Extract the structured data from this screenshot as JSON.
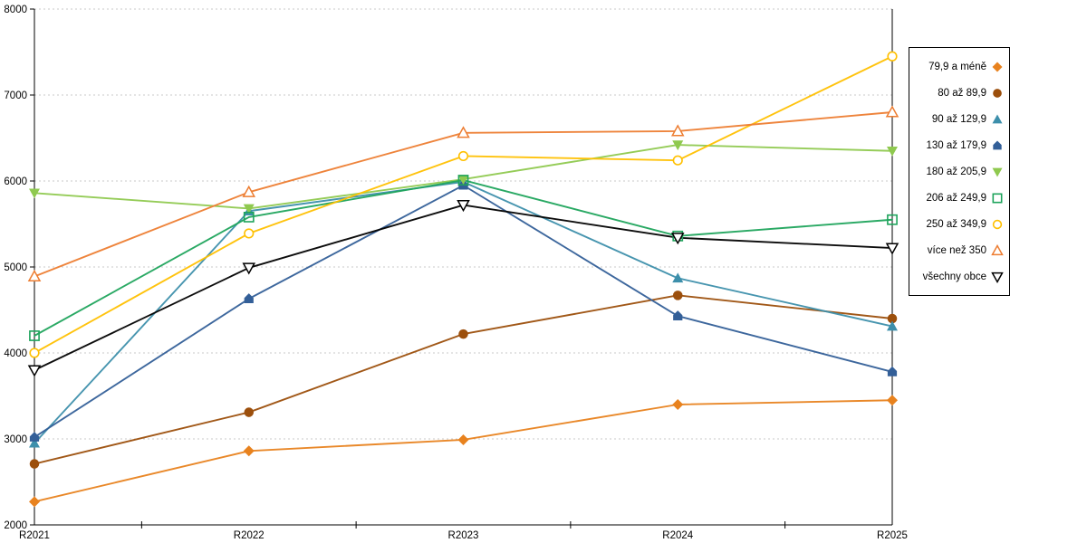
{
  "chart_data": {
    "type": "line",
    "title": "",
    "xlabel": "",
    "ylabel": "",
    "categories": [
      "R2021",
      "R2022",
      "R2023",
      "R2024",
      "R2025"
    ],
    "y_axis": {
      "min": 2000,
      "max": 8000,
      "step": 1000,
      "gridlines": "dashed"
    },
    "legend_position": "right",
    "series": [
      {
        "name": "79,9 a méně",
        "marker": "diamond",
        "color": "#E8821E",
        "values": [
          2270,
          2860,
          2990,
          3400,
          3450
        ]
      },
      {
        "name": "80 až 89,9",
        "marker": "circle",
        "color": "#9C4F0C",
        "values": [
          2710,
          3310,
          4220,
          4670,
          4400
        ]
      },
      {
        "name": "90 až 129,9",
        "marker": "triangle-up",
        "color": "#3D8FAB",
        "values": [
          2950,
          5650,
          5990,
          4870,
          4310
        ]
      },
      {
        "name": "130 až 179,9",
        "marker": "pentagon",
        "color": "#335F98",
        "values": [
          3020,
          4630,
          5950,
          4430,
          3780
        ]
      },
      {
        "name": "180 až 205,9",
        "marker": "triangle-down",
        "color": "#8FC94F",
        "values": [
          5860,
          5680,
          6020,
          6420,
          6350
        ]
      },
      {
        "name": "206 až 249,9",
        "marker": "square-open",
        "color": "#1FA45C",
        "values": [
          4200,
          5580,
          6010,
          5360,
          5550
        ]
      },
      {
        "name": "250 až 349,9",
        "marker": "circle-open",
        "color": "#FFC000",
        "values": [
          4000,
          5390,
          6290,
          6240,
          7450
        ]
      },
      {
        "name": "více než 350",
        "marker": "triangle-up-open",
        "color": "#ED7D31",
        "values": [
          4890,
          5870,
          6560,
          6580,
          6800
        ]
      },
      {
        "name": "všechny obce",
        "marker": "triangle-down-open",
        "color": "#000000",
        "values": [
          3800,
          4990,
          5720,
          5340,
          5220
        ]
      }
    ]
  }
}
